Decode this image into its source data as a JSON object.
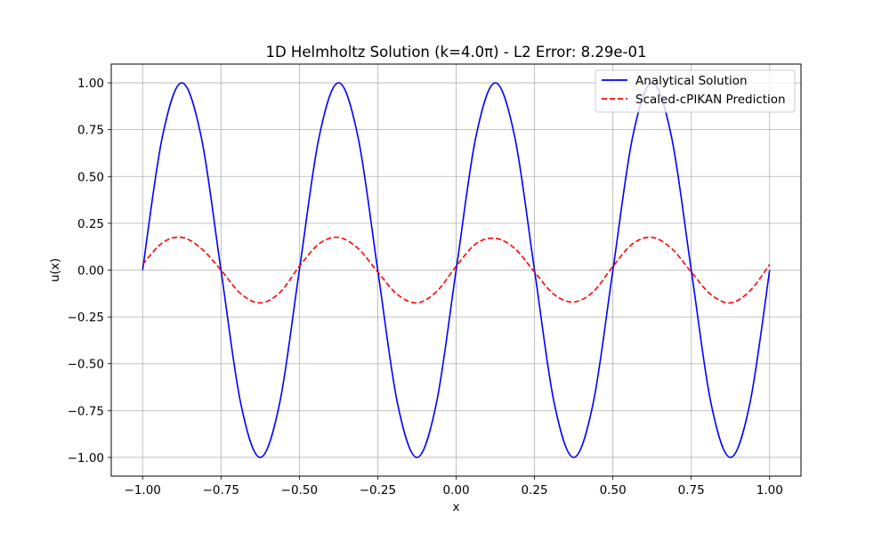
{
  "chart_data": {
    "type": "line",
    "title": "1D Helmholtz Solution (k=4.0π) - L2 Error: 8.29e-01",
    "xlabel": "x",
    "ylabel": "u(x)",
    "xlim": [
      -1.1,
      1.1
    ],
    "ylim": [
      -1.1,
      1.1
    ],
    "xticks": [
      -1.0,
      -0.75,
      -0.5,
      -0.25,
      0.0,
      0.25,
      0.5,
      0.75,
      1.0
    ],
    "xtick_labels": [
      "−1.00",
      "−0.75",
      "−0.50",
      "−0.25",
      "0.00",
      "0.25",
      "0.50",
      "0.75",
      "1.00"
    ],
    "yticks": [
      -1.0,
      -0.75,
      -0.5,
      -0.25,
      0.0,
      0.25,
      0.5,
      0.75,
      1.0
    ],
    "ytick_labels": [
      "−1.00",
      "−0.75",
      "−0.50",
      "−0.25",
      "0.00",
      "0.25",
      "0.50",
      "0.75",
      "1.00"
    ],
    "grid": true,
    "legend_position": "top-right",
    "series": [
      {
        "name": "Analytical Solution",
        "color": "#0000ff",
        "line_style": "solid",
        "x": [
          -1.0,
          -0.9375,
          -0.875,
          -0.8125,
          -0.75,
          -0.6875,
          -0.625,
          -0.5625,
          -0.5,
          -0.4375,
          -0.375,
          -0.3125,
          -0.25,
          -0.1875,
          -0.125,
          -0.0625,
          0.0,
          0.0625,
          0.125,
          0.1875,
          0.25,
          0.3125,
          0.375,
          0.4375,
          0.5,
          0.5625,
          0.625,
          0.6875,
          0.75,
          0.8125,
          0.875,
          0.9375,
          1.0
        ],
        "y": [
          0.0,
          0.707,
          1.0,
          0.707,
          0.0,
          -0.707,
          -1.0,
          -0.707,
          0.0,
          0.707,
          1.0,
          0.707,
          0.0,
          -0.707,
          -1.0,
          -0.707,
          0.0,
          0.707,
          1.0,
          0.707,
          0.0,
          -0.707,
          -1.0,
          -0.707,
          0.0,
          0.707,
          1.0,
          0.707,
          0.0,
          -0.707,
          -1.0,
          -0.707,
          0.0
        ]
      },
      {
        "name": "Scaled-cPIKAN Prediction",
        "color": "#ff0000",
        "line_style": "dashed",
        "x": [
          -1.0,
          -0.9375,
          -0.875,
          -0.8125,
          -0.75,
          -0.6875,
          -0.625,
          -0.5625,
          -0.5,
          -0.4375,
          -0.375,
          -0.3125,
          -0.25,
          -0.1875,
          -0.125,
          -0.0625,
          0.0,
          0.0625,
          0.125,
          0.1875,
          0.25,
          0.3125,
          0.375,
          0.4375,
          0.5,
          0.5625,
          0.625,
          0.6875,
          0.75,
          0.8125,
          0.875,
          0.9375,
          1.0
        ],
        "y": [
          0.03,
          0.145,
          0.175,
          0.115,
          0.0,
          -0.125,
          -0.175,
          -0.12,
          0.02,
          0.14,
          0.175,
          0.115,
          -0.01,
          -0.13,
          -0.175,
          -0.115,
          0.02,
          0.14,
          0.17,
          0.115,
          -0.01,
          -0.13,
          -0.17,
          -0.115,
          0.02,
          0.14,
          0.175,
          0.115,
          -0.01,
          -0.13,
          -0.175,
          -0.11,
          0.03
        ]
      }
    ]
  }
}
